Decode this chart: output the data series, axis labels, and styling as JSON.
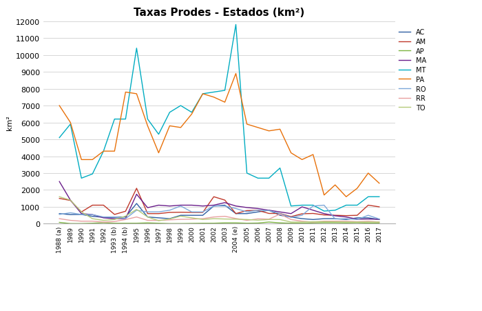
{
  "title": "Taxas Prodes - Estados (km²)",
  "ylabel": "km²",
  "ylim": [
    0,
    12000
  ],
  "yticks": [
    0,
    1000,
    2000,
    3000,
    4000,
    5000,
    6000,
    7000,
    8000,
    9000,
    10000,
    11000,
    12000
  ],
  "years": [
    "1988 (a)",
    "1989",
    "1990",
    "1991",
    "1992",
    "1993 (b)",
    "1994 (b)",
    "1995",
    "1996",
    "1997",
    "1998",
    "1999",
    "2000",
    "2001",
    "2002",
    "2003",
    "2004 (e)",
    "2005",
    "2006",
    "2007",
    "2008",
    "2009",
    "2010",
    "2011",
    "2012",
    "2013",
    "2014",
    "2015",
    "2016",
    "2017"
  ],
  "series": {
    "AC": {
      "color": "#2E5FA3",
      "values": [
        600,
        540,
        550,
        440,
        380,
        380,
        400,
        1200,
        400,
        350,
        300,
        500,
        500,
        500,
        1050,
        1100,
        600,
        600,
        700,
        800,
        500,
        400,
        300,
        250,
        300,
        300,
        250,
        350,
        350,
        250
      ]
    },
    "AM": {
      "color": "#C0392B",
      "values": [
        1500,
        1380,
        700,
        1100,
        1100,
        550,
        740,
        2100,
        600,
        600,
        670,
        680,
        670,
        670,
        1600,
        1400,
        600,
        780,
        790,
        610,
        610,
        420,
        590,
        610,
        520,
        500,
        480,
        500,
        1100,
        1000
      ]
    },
    "AP": {
      "color": "#7CB342",
      "values": [
        80,
        10,
        10,
        30,
        60,
        30,
        30,
        30,
        50,
        30,
        10,
        10,
        20,
        30,
        30,
        50,
        50,
        30,
        40,
        100,
        50,
        30,
        30,
        50,
        60,
        60,
        50,
        60,
        40,
        30
      ]
    },
    "MA": {
      "color": "#6A1E8A",
      "values": [
        2500,
        1400,
        600,
        540,
        350,
        300,
        300,
        1750,
        950,
        1100,
        1050,
        1100,
        1100,
        1050,
        1100,
        1250,
        1050,
        960,
        900,
        800,
        700,
        600,
        1000,
        800,
        600,
        470,
        400,
        270,
        280,
        260
      ]
    },
    "MT": {
      "color": "#00ACC1",
      "values": [
        5100,
        5900,
        2700,
        2950,
        4300,
        6200,
        6200,
        10400,
        6200,
        5300,
        6600,
        7000,
        6600,
        7700,
        7800,
        7900,
        11800,
        3000,
        2700,
        2700,
        3300,
        1050,
        1100,
        1100,
        750,
        800,
        1100,
        1100,
        1600,
        1600
      ]
    },
    "PA": {
      "color": "#E8710A",
      "values": [
        7000,
        6000,
        3800,
        3800,
        4300,
        4300,
        7800,
        7700,
        5800,
        4200,
        5800,
        5700,
        6500,
        7700,
        7500,
        7200,
        8900,
        5900,
        5700,
        5500,
        5600,
        4200,
        3800,
        4100,
        1700,
        2300,
        1600,
        2100,
        3000,
        2400
      ]
    },
    "RO": {
      "color": "#7DA7D9",
      "values": [
        550,
        650,
        550,
        540,
        400,
        400,
        300,
        800,
        700,
        700,
        800,
        1050,
        700,
        700,
        1050,
        1050,
        900,
        700,
        800,
        780,
        600,
        380,
        500,
        1050,
        1100,
        280,
        300,
        250,
        500,
        280
      ]
    },
    "RR": {
      "color": "#E8A0A0",
      "values": [
        300,
        200,
        150,
        150,
        100,
        130,
        250,
        400,
        200,
        200,
        230,
        260,
        270,
        300,
        400,
        440,
        310,
        200,
        290,
        270,
        570,
        250,
        150,
        100,
        150,
        150,
        150,
        120,
        150,
        100
      ]
    },
    "TO": {
      "color": "#B5CA7A",
      "values": [
        1600,
        1400,
        700,
        300,
        200,
        250,
        450,
        850,
        400,
        180,
        280,
        450,
        350,
        250,
        300,
        280,
        270,
        250,
        210,
        250,
        250,
        100,
        100,
        120,
        120,
        110,
        100,
        100,
        100,
        100
      ]
    }
  }
}
